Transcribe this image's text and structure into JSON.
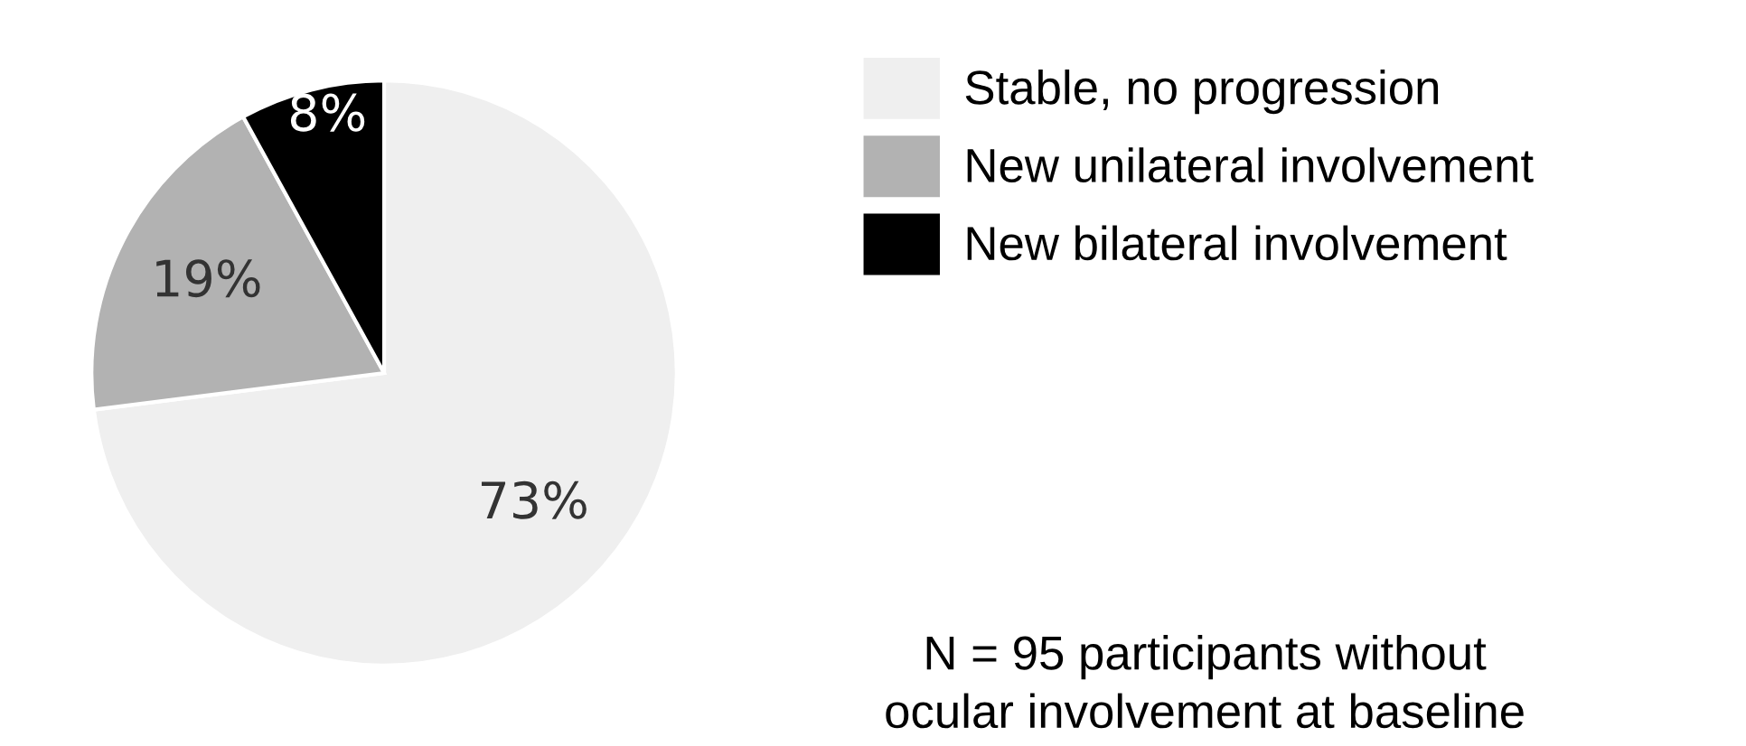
{
  "chart_data": {
    "type": "pie",
    "categories": [
      "Stable, no progression",
      "New unilateral involvement",
      "New bilateral involvement"
    ],
    "values": [
      73,
      19,
      8
    ],
    "colors": [
      "#efefef",
      "#b2b2b2",
      "#000000"
    ],
    "value_labels": [
      "73%",
      "19%",
      "8%"
    ],
    "legend": "right",
    "annotations": [
      "N = 95 participants without\nocular involvement at baseline"
    ]
  }
}
